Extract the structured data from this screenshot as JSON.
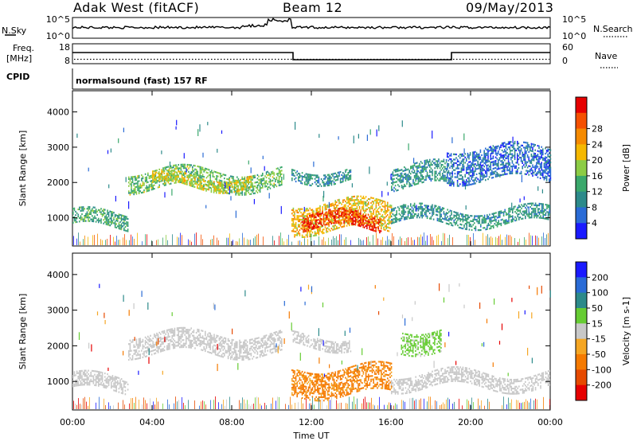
{
  "header": {
    "station": "Adak West (fitACF)",
    "beam": "Beam 12",
    "date": "09/May/2013"
  },
  "top_panels": {
    "nsky_label": "N.Sky",
    "nsearch_label": "N.Search",
    "nsky_ticks": [
      "10^5",
      "10^0"
    ],
    "nsearch_ticks": [
      "10^5",
      "10^0"
    ],
    "freq_label_1": "Freq.",
    "freq_label_2": "[MHz]",
    "freq_ticks": [
      "18",
      "8"
    ],
    "nave_label": "Nave",
    "nave_ticks": [
      "60",
      "0"
    ],
    "cpid_label": "CPID",
    "cpid_text": "normalsound (fast) 157 RF"
  },
  "colors": {
    "power": [
      "#1a1aff",
      "#2a6bd6",
      "#2c8a8a",
      "#3aa86b",
      "#8ccc44",
      "#f5b800",
      "#f58a00",
      "#f55000",
      "#e60000"
    ],
    "velocity": [
      "#1a1aff",
      "#2a6bd6",
      "#2c8a8a",
      "#66cc33",
      "#c8c8c8",
      "#f5a623",
      "#f57a00",
      "#e64a00",
      "#e60000"
    ]
  },
  "chart_data": [
    {
      "type": "heatmap",
      "xlabel": "",
      "ylabel": "Slant Range [km]",
      "x_ticks": [
        "00:00",
        "04:00",
        "08:00",
        "12:00",
        "16:00",
        "20:00",
        "00:00"
      ],
      "y_ticks": [
        1000,
        2000,
        3000,
        4000
      ],
      "ylim": [
        200,
        4600
      ],
      "colorbar": {
        "label": "Power [dB]",
        "ticks": [
          4,
          8,
          12,
          16,
          20,
          24,
          28
        ],
        "range": [
          0,
          32
        ]
      },
      "regions": [
        {
          "t0": 0.0,
          "t1": 2.8,
          "r0": 750,
          "r1": 1150,
          "level": 12
        },
        {
          "t0": 2.8,
          "t1": 10.5,
          "r0": 1850,
          "r1": 2350,
          "level": 14
        },
        {
          "t0": 4.0,
          "t1": 9.0,
          "r0": 1900,
          "r1": 2200,
          "level": 18
        },
        {
          "t0": 11.0,
          "t1": 14.0,
          "r0": 2100,
          "r1": 2400,
          "level": 10
        },
        {
          "t0": 11.0,
          "t1": 16.0,
          "r0": 650,
          "r1": 1450,
          "level": 20
        },
        {
          "t0": 11.5,
          "t1": 15.5,
          "r0": 700,
          "r1": 1100,
          "level": 28
        },
        {
          "t0": 16.0,
          "t1": 18.8,
          "r0": 1900,
          "r1": 2500,
          "level": 10
        },
        {
          "t0": 16.0,
          "t1": 24.0,
          "r0": 850,
          "r1": 1250,
          "level": 10
        },
        {
          "t0": 18.8,
          "t1": 24.0,
          "r0": 2100,
          "r1": 3000,
          "level": 6
        }
      ]
    },
    {
      "type": "heatmap",
      "xlabel": "Time UT",
      "ylabel": "Slant Range [km]",
      "x_ticks": [
        "00:00",
        "04:00",
        "08:00",
        "12:00",
        "16:00",
        "20:00",
        "00:00"
      ],
      "y_ticks": [
        1000,
        2000,
        3000,
        4000
      ],
      "ylim": [
        200,
        4600
      ],
      "colorbar": {
        "label": "Velocity [m s-1]",
        "ticks": [
          200,
          100,
          50,
          15,
          -15,
          -50,
          -100,
          -200
        ],
        "range": [
          -250,
          250
        ]
      },
      "regions": [
        {
          "t0": 0.0,
          "t1": 2.8,
          "r0": 750,
          "r1": 1150,
          "value": 0
        },
        {
          "t0": 2.8,
          "t1": 10.5,
          "r0": 1800,
          "r1": 2350,
          "value": 0
        },
        {
          "t0": 11.0,
          "t1": 14.0,
          "r0": 2000,
          "r1": 2300,
          "value": 0
        },
        {
          "t0": 11.0,
          "t1": 16.0,
          "r0": 650,
          "r1": 1400,
          "value": -60
        },
        {
          "t0": 16.5,
          "t1": 18.5,
          "r0": 1900,
          "r1": 2500,
          "value": 30
        },
        {
          "t0": 16.0,
          "t1": 24.0,
          "r0": 850,
          "r1": 1250,
          "value": 0
        }
      ]
    }
  ]
}
